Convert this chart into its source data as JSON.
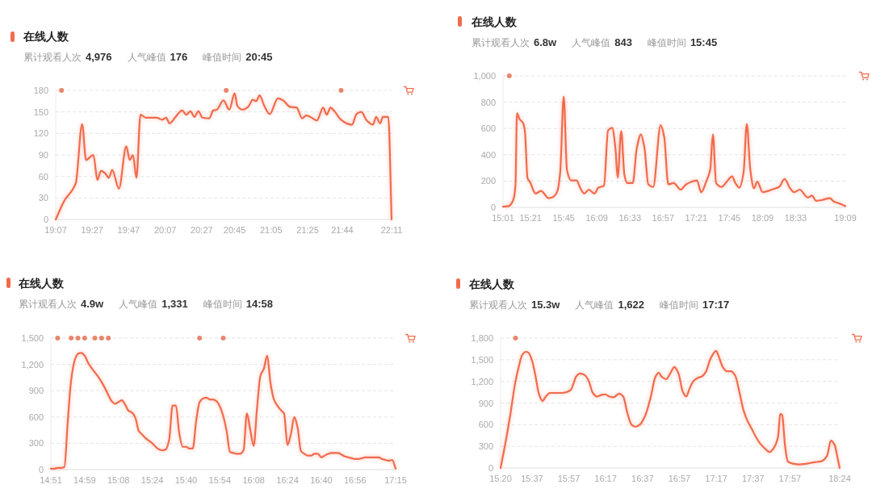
{
  "chart_data": [
    {
      "type": "line",
      "title": "在线人数",
      "subtitle": "累计观看人次 4,976   人气峰值 176   峰值时间 20:45",
      "grid": "y",
      "xlim": [
        19.117,
        22.183
      ],
      "xticks": [
        {
          "value": 19.117,
          "label": "19:07"
        },
        {
          "value": 19.45,
          "label": "19:27"
        },
        {
          "value": 19.783,
          "label": "19:47"
        },
        {
          "value": 20.117,
          "label": "20:07"
        },
        {
          "value": 20.45,
          "label": "20:27"
        },
        {
          "value": 20.75,
          "label": "20:45"
        },
        {
          "value": 21.083,
          "label": "21:05"
        },
        {
          "value": 21.417,
          "label": "21:25"
        },
        {
          "value": 21.733,
          "label": "21:44"
        },
        {
          "value": 22.183,
          "label": "22:11"
        }
      ],
      "ylim": [
        0,
        180
      ],
      "yticks": [
        0,
        30,
        60,
        90,
        120,
        150,
        180
      ],
      "x": [
        19.117,
        19.203,
        19.264,
        19.301,
        19.358,
        19.394,
        19.461,
        19.498,
        19.53,
        19.571,
        19.601,
        19.633,
        19.694,
        19.761,
        19.793,
        19.822,
        19.854,
        19.891,
        19.94,
        20.039,
        20.088,
        20.125,
        20.156,
        20.211,
        20.272,
        20.309,
        20.346,
        20.383,
        20.42,
        20.456,
        20.518,
        20.555,
        20.587,
        20.648,
        20.702,
        20.75,
        20.776,
        20.825,
        20.874,
        20.916,
        20.948,
        20.978,
        21.022,
        21.071,
        21.145,
        21.194,
        21.255,
        21.317,
        21.366,
        21.403,
        21.464,
        21.501,
        21.558,
        21.592,
        21.624,
        21.661,
        21.722,
        21.772,
        21.821,
        21.863,
        21.907,
        21.956,
        22.013,
        22.042,
        22.079,
        22.103,
        22.153,
        22.183
      ],
      "series": [
        {
          "color": "#f26b4c",
          "values": [
            0,
            28,
            40,
            51,
            133,
            83,
            90,
            55,
            68,
            64,
            58,
            69,
            43,
            102,
            83,
            90,
            58,
            146,
            142,
            142,
            139,
            142,
            134,
            143,
            152,
            146,
            151,
            143,
            151,
            142,
            141,
            152,
            153,
            166,
            153,
            176,
            158,
            153,
            157,
            167,
            165,
            173,
            158,
            147,
            169,
            166,
            157,
            156,
            141,
            145,
            141,
            138,
            156,
            146,
            156,
            151,
            139,
            134,
            132,
            147,
            150,
            138,
            132,
            143,
            134,
            143,
            143,
            0
          ]
        },
        {
          "type": "scatter",
          "color": "#e8866d",
          "x": [
            19.17,
            20.673,
            21.722
          ],
          "values": [
            180,
            180,
            180
          ]
        }
      ]
    },
    {
      "type": "line",
      "title": "在线人数",
      "subtitle": "累计观看人次 6.8w   人气峰值 843   峰值时间 15:45",
      "grid": "y",
      "xlim": [
        15.017,
        19.15
      ],
      "xticks": [
        {
          "value": 15.017,
          "label": "15:01"
        },
        {
          "value": 15.35,
          "label": "15:21"
        },
        {
          "value": 15.75,
          "label": "15:45"
        },
        {
          "value": 16.15,
          "label": "16:09"
        },
        {
          "value": 16.55,
          "label": "16:33"
        },
        {
          "value": 16.95,
          "label": "16:57"
        },
        {
          "value": 17.35,
          "label": "17:21"
        },
        {
          "value": 17.75,
          "label": "17:45"
        },
        {
          "value": 18.15,
          "label": "18:09"
        },
        {
          "value": 18.55,
          "label": "18:33"
        },
        {
          "value": 19.15,
          "label": "19:09"
        }
      ],
      "ylim": [
        0,
        1000
      ],
      "yticks": [
        0,
        200,
        400,
        600,
        800,
        {
          "value": 1000,
          "label": "1,000"
        }
      ],
      "x": [
        15.017,
        15.085,
        15.14,
        15.167,
        15.186,
        15.214,
        15.263,
        15.282,
        15.312,
        15.345,
        15.41,
        15.476,
        15.568,
        15.624,
        15.674,
        15.707,
        15.75,
        15.789,
        15.839,
        15.905,
        15.955,
        15.998,
        16.054,
        16.12,
        16.169,
        16.236,
        16.285,
        16.335,
        16.374,
        16.401,
        16.444,
        16.483,
        16.516,
        16.583,
        16.632,
        16.682,
        16.725,
        16.771,
        16.83,
        16.92,
        16.963,
        17.012,
        17.078,
        17.161,
        17.227,
        17.293,
        17.359,
        17.409,
        17.475,
        17.518,
        17.551,
        17.59,
        17.656,
        17.706,
        17.782,
        17.822,
        17.871,
        17.921,
        17.96,
        18.003,
        18.046,
        18.086,
        18.152,
        18.218,
        18.284,
        18.35,
        18.416,
        18.483,
        18.532,
        18.598,
        18.697,
        18.747,
        18.796,
        18.862,
        18.962,
        19.011,
        19.077,
        19.15
      ],
      "series": [
        {
          "color": "#f26b4c",
          "values": [
            5,
            10,
            55,
            165,
            715,
            675,
            635,
            575,
            225,
            190,
            105,
            125,
            70,
            80,
            125,
            265,
            843,
            285,
            205,
            205,
            140,
            105,
            135,
            105,
            150,
            165,
            585,
            605,
            450,
            225,
            580,
            245,
            185,
            185,
            450,
            555,
            450,
            175,
            155,
            625,
            535,
            175,
            185,
            135,
            175,
            195,
            205,
            115,
            205,
            285,
            555,
            185,
            155,
            185,
            235,
            185,
            150,
            265,
            635,
            285,
            145,
            195,
            115,
            125,
            140,
            155,
            215,
            145,
            115,
            135,
            75,
            90,
            50,
            55,
            70,
            45,
            30,
            10
          ]
        },
        {
          "type": "scatter",
          "color": "#e8866d",
          "x": [
            15.093
          ],
          "values": [
            1000
          ]
        }
      ]
    },
    {
      "type": "line",
      "title": "在线人数",
      "subtitle": "累计观看人次 4.9w   人气峰值 1,331   峰值时间 14:58",
      "grid": "y",
      "ylim": [
        0,
        1500
      ],
      "yticks": [
        0,
        300,
        600,
        900,
        {
          "value": 1200,
          "label": "1,200"
        },
        {
          "value": 1500,
          "label": "1,500"
        }
      ],
      "categories": [
        "14:51",
        null,
        null,
        null,
        null,
        null,
        null,
        null,
        null,
        null,
        "14:59",
        null,
        null,
        null,
        null,
        null,
        null,
        null,
        null,
        null,
        "15:08",
        null,
        null,
        null,
        null,
        null,
        null,
        null,
        null,
        null,
        "15:24",
        null,
        null,
        null,
        null,
        null,
        null,
        null,
        null,
        null,
        "15:40",
        null,
        null,
        null,
        null,
        null,
        null,
        null,
        null,
        null,
        "15:54",
        null,
        null,
        null,
        null,
        null,
        null,
        null,
        null,
        null,
        "16:08",
        null,
        null,
        null,
        null,
        null,
        null,
        null,
        null,
        null,
        "16:24",
        null,
        null,
        null,
        null,
        null,
        null,
        null,
        null,
        null,
        "16:40",
        null,
        null,
        null,
        null,
        null,
        null,
        null,
        null,
        null,
        "16:56",
        null,
        null,
        null,
        null,
        null,
        null,
        null,
        null,
        null,
        null,
        null,
        "17:15"
      ],
      "series": [
        {
          "color": "#f26b4c",
          "values": [
            10,
            10,
            20,
            20,
            30,
            550,
            1020,
            1240,
            1320,
            1331,
            1300,
            1220,
            1160,
            1110,
            1060,
            1000,
            930,
            850,
            780,
            750,
            770,
            790,
            740,
            670,
            650,
            590,
            440,
            400,
            360,
            330,
            300,
            260,
            230,
            220,
            230,
            340,
            730,
            730,
            410,
            260,
            260,
            240,
            240,
            560,
            770,
            810,
            820,
            800,
            800,
            780,
            720,
            610,
            440,
            200,
            190,
            180,
            180,
            220,
            640,
            450,
            270,
            700,
            1070,
            1150,
            1300,
            980,
            800,
            730,
            680,
            640,
            280,
            400,
            600,
            480,
            210,
            180,
            160,
            160,
            180,
            180,
            140,
            160,
            180,
            190,
            190,
            190,
            170,
            150,
            140,
            130,
            120,
            120,
            130,
            140,
            140,
            140,
            140,
            140,
            120,
            110,
            100,
            110,
            10
          ]
        },
        {
          "type": "scatter",
          "color": "#e8866d",
          "values": [
            null,
            null,
            1500,
            null,
            null,
            null,
            1500,
            null,
            1500,
            null,
            1500,
            null,
            null,
            1500,
            null,
            1500,
            null,
            1500,
            null,
            null,
            null,
            null,
            null,
            null,
            null,
            null,
            null,
            null,
            null,
            null,
            null,
            null,
            null,
            null,
            null,
            null,
            null,
            null,
            null,
            null,
            null,
            null,
            null,
            null,
            1500,
            null,
            null,
            null,
            null,
            null,
            null,
            1500,
            null,
            null,
            null,
            null,
            null,
            null,
            null,
            null,
            null,
            null,
            null,
            null,
            null,
            null,
            null,
            null,
            null,
            null,
            null,
            null,
            null,
            null,
            null,
            null,
            null,
            null,
            null,
            null,
            null,
            null,
            null,
            null,
            null,
            null,
            null,
            null,
            null,
            null,
            null,
            null,
            null,
            null,
            null,
            null,
            null,
            null,
            null,
            null,
            null,
            null,
            null
          ]
        }
      ]
    },
    {
      "type": "line",
      "title": "在线人数",
      "subtitle": "累计观看人次 15.3w   人气峰值 1,622   峰值时间 17:17",
      "grid": "y",
      "xlim": [
        15.333,
        18.4
      ],
      "xticks": [
        {
          "value": 15.333,
          "label": "15:20"
        },
        {
          "value": 15.617,
          "label": "15:37"
        },
        {
          "value": 15.95,
          "label": "15:57"
        },
        {
          "value": 16.283,
          "label": "16:17"
        },
        {
          "value": 16.617,
          "label": "16:37"
        },
        {
          "value": 16.95,
          "label": "16:57"
        },
        {
          "value": 17.283,
          "label": "17:17"
        },
        {
          "value": 17.617,
          "label": "17:37"
        },
        {
          "value": 17.95,
          "label": "17:57"
        },
        {
          "value": 18.4,
          "label": "18:24"
        }
      ],
      "ylim": [
        0,
        1800
      ],
      "yticks": [
        0,
        300,
        600,
        900,
        {
          "value": 1200,
          "label": "1,200"
        },
        {
          "value": 1500,
          "label": "1,500"
        },
        {
          "value": 1800,
          "label": "1,800"
        }
      ],
      "x": [
        15.333,
        15.377,
        15.42,
        15.464,
        15.497,
        15.529,
        15.562,
        15.584,
        15.617,
        15.647,
        15.679,
        15.712,
        15.742,
        15.779,
        15.842,
        15.892,
        15.967,
        15.992,
        16.017,
        16.054,
        16.092,
        16.129,
        16.167,
        16.204,
        16.242,
        16.279,
        16.317,
        16.354,
        16.405,
        16.442,
        16.48,
        16.517,
        16.555,
        16.592,
        16.642,
        16.692,
        16.73,
        16.762,
        16.792,
        16.83,
        16.867,
        16.905,
        16.942,
        16.98,
        17.012,
        17.042,
        17.08,
        17.117,
        17.155,
        17.192,
        17.23,
        17.283,
        17.305,
        17.342,
        17.38,
        17.417,
        17.455,
        17.492,
        17.53,
        17.567,
        17.605,
        17.642,
        17.68,
        17.717,
        17.767,
        17.805,
        17.842,
        17.862,
        17.88,
        17.905,
        17.93,
        17.977,
        18.034,
        18.103,
        18.171,
        18.229,
        18.286,
        18.32,
        18.354,
        18.382,
        18.4
      ],
      "series": [
        {
          "color": "#f26b4c",
          "values": [
            0,
            350,
            730,
            1170,
            1400,
            1570,
            1610,
            1600,
            1490,
            1290,
            1030,
            930,
            990,
            1040,
            1040,
            1040,
            1080,
            1170,
            1270,
            1310,
            1290,
            1210,
            1040,
            990,
            1010,
            1020,
            990,
            980,
            1030,
            990,
            760,
            600,
            570,
            600,
            730,
            990,
            1250,
            1320,
            1260,
            1230,
            1310,
            1400,
            1310,
            1060,
            990,
            1100,
            1210,
            1250,
            1270,
            1340,
            1510,
            1622,
            1550,
            1400,
            1340,
            1340,
            1280,
            1060,
            800,
            650,
            540,
            430,
            340,
            280,
            220,
            280,
            430,
            750,
            730,
            320,
            90,
            60,
            50,
            60,
            80,
            90,
            170,
            380,
            320,
            130,
            0
          ]
        },
        {
          "type": "scatter",
          "color": "#e8866d",
          "x": [
            15.468
          ],
          "values": [
            1800
          ]
        }
      ]
    }
  ]
}
